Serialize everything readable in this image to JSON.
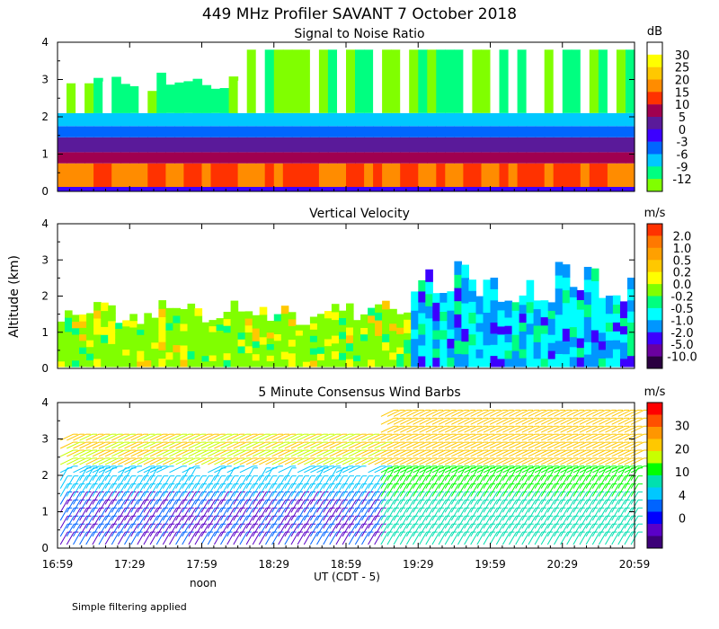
{
  "figure": {
    "title": "449 MHz Profiler SAVANT  7 October 2018",
    "shared_ylabel": "Altitude (km)",
    "xlabel": "UT  (CDT - 5)",
    "noon_label": "noon",
    "footnote": "Simple filtering applied"
  },
  "colors": {
    "axis": "#000000",
    "background": "#ffffff"
  },
  "chart_data": [
    {
      "type": "heatmap",
      "title": "Signal to Noise Ratio",
      "unit": "dB",
      "x_ticks": [
        "16:59",
        "17:29",
        "17:59",
        "18:29",
        "18:59",
        "19:29",
        "19:59",
        "20:29",
        "20:59"
      ],
      "y_ticks": [
        "0",
        "1",
        "2",
        "3",
        "4"
      ],
      "ylim": [
        0,
        4
      ],
      "colorbar": {
        "labels": [
          "30",
          "25",
          "20",
          "15",
          "10",
          "5",
          "0",
          "-3",
          "-6",
          "-9",
          "-12"
        ],
        "colors": [
          "#ffffff",
          "#ffff00",
          "#ffc800",
          "#ff8c00",
          "#ff3200",
          "#a00050",
          "#5a1a9a",
          "#3c00ff",
          "#0066ff",
          "#00c8ff",
          "#00ff80",
          "#80ff00"
        ]
      },
      "layers": [
        {
          "range_km": [
            0.0,
            0.2
          ],
          "value": "-3 to 0"
        },
        {
          "range_km": [
            0.2,
            0.8
          ],
          "value": "10 to 15"
        },
        {
          "range_km": [
            0.8,
            1.5
          ],
          "value": "0 to 5"
        },
        {
          "range_km": [
            1.5,
            2.0
          ],
          "value": "-3 to -9"
        },
        {
          "range_km": [
            2.0,
            3.8
          ],
          "value": "-9 to -12 with white (>30) patches"
        }
      ]
    },
    {
      "type": "heatmap",
      "title": "Vertical Velocity",
      "unit": "m/s",
      "x_ticks": [
        "16:59",
        "17:29",
        "17:59",
        "18:29",
        "18:59",
        "19:29",
        "19:59",
        "20:29",
        "20:59"
      ],
      "y_ticks": [
        "0",
        "1",
        "2",
        "3",
        "4"
      ],
      "ylim": [
        0,
        4
      ],
      "colorbar": {
        "labels": [
          "2.0",
          "1.0",
          "0.5",
          "0.2",
          "0.0",
          "-0.2",
          "-0.5",
          "-1.0",
          "-2.0",
          "-5.0",
          "-10.0"
        ],
        "colors": [
          "#ff3200",
          "#ff7800",
          "#ffa000",
          "#ffc800",
          "#ffff00",
          "#80ff00",
          "#00ff80",
          "#00ffff",
          "#0096ff",
          "#3c00ff",
          "#6a00a0",
          "#2a0040"
        ]
      },
      "description_values": [
        {
          "period": "16:59-19:00",
          "altitude_km": [
            0,
            1.8
          ],
          "value": "-0.2 to 0.0"
        },
        {
          "period": "19:00-20:59",
          "altitude_km": [
            0,
            2.2
          ],
          "value": "-0.5 to -1.0"
        }
      ]
    },
    {
      "type": "scatter",
      "title": "5 Minute Consensus Wind Barbs",
      "unit": "m/s",
      "x_ticks": [
        "16:59",
        "17:29",
        "17:59",
        "18:29",
        "18:59",
        "19:29",
        "19:59",
        "20:29",
        "20:59"
      ],
      "y_ticks": [
        "0",
        "1",
        "2",
        "3",
        "4"
      ],
      "ylim": [
        0,
        4
      ],
      "colorbar": {
        "labels": [
          "30",
          "20",
          "10",
          "4",
          "0"
        ],
        "colors": [
          "#ff0000",
          "#ff5000",
          "#ff9600",
          "#ffc800",
          "#c8ff00",
          "#00ff00",
          "#00e0b0",
          "#00c8ff",
          "#0064ff",
          "#0000ff",
          "#5a00c8",
          "#3c0078"
        ]
      }
    }
  ]
}
